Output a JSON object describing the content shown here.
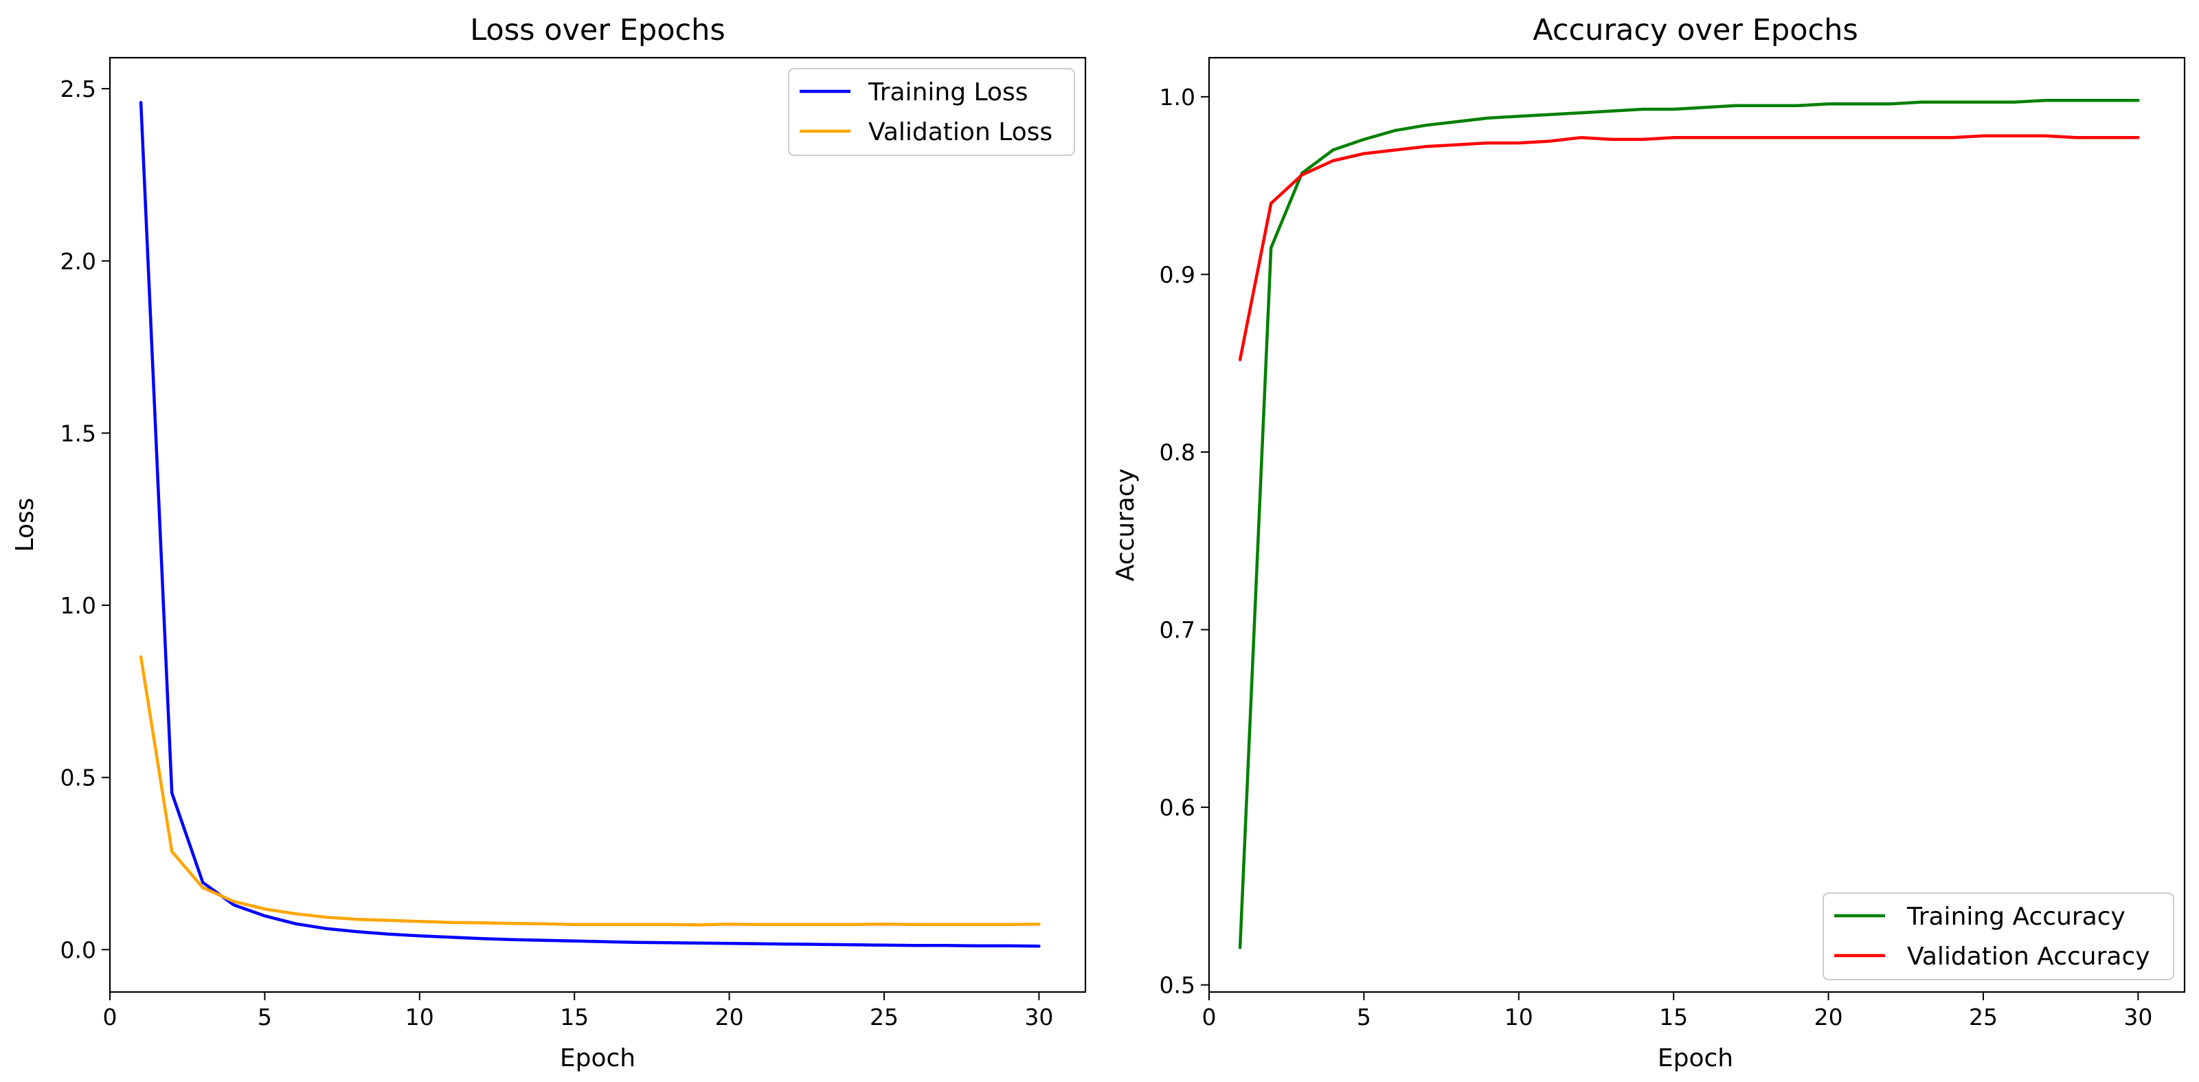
{
  "chart_data": [
    {
      "type": "line",
      "title": "Loss over Epochs",
      "xlabel": "Epoch",
      "ylabel": "Loss",
      "xlim": [
        0,
        31.5
      ],
      "ylim": [
        -0.123,
        2.59
      ],
      "xticks": [
        0,
        5,
        10,
        15,
        20,
        25,
        30
      ],
      "yticks": [
        0.0,
        0.5,
        1.0,
        1.5,
        2.0,
        2.5
      ],
      "ytick_labels": [
        "0.0",
        "0.5",
        "1.0",
        "1.5",
        "2.0",
        "2.5"
      ],
      "xtick_labels": [
        "0",
        "5",
        "10",
        "15",
        "20",
        "25",
        "30"
      ],
      "legend_position": "top-right",
      "grid": false,
      "x": [
        1,
        2,
        3,
        4,
        5,
        6,
        7,
        8,
        9,
        10,
        11,
        12,
        13,
        14,
        15,
        16,
        17,
        18,
        19,
        20,
        21,
        22,
        23,
        24,
        25,
        26,
        27,
        28,
        29,
        30
      ],
      "series": [
        {
          "name": "Training Loss",
          "color": "#0000ff",
          "values": [
            2.46,
            0.455,
            0.195,
            0.13,
            0.098,
            0.075,
            0.061,
            0.052,
            0.045,
            0.04,
            0.036,
            0.032,
            0.029,
            0.027,
            0.025,
            0.023,
            0.021,
            0.02,
            0.019,
            0.018,
            0.017,
            0.016,
            0.015,
            0.014,
            0.013,
            0.012,
            0.012,
            0.011,
            0.011,
            0.01
          ]
        },
        {
          "name": "Validation Loss",
          "color": "#ffa500",
          "values": [
            0.85,
            0.285,
            0.18,
            0.14,
            0.118,
            0.104,
            0.094,
            0.088,
            0.085,
            0.082,
            0.079,
            0.078,
            0.076,
            0.075,
            0.073,
            0.073,
            0.073,
            0.073,
            0.072,
            0.074,
            0.073,
            0.073,
            0.073,
            0.073,
            0.074,
            0.073,
            0.073,
            0.073,
            0.073,
            0.074
          ]
        }
      ]
    },
    {
      "type": "line",
      "title": "Accuracy over Epochs",
      "xlabel": "Epoch",
      "ylabel": "Accuracy",
      "xlim": [
        0,
        31.5
      ],
      "ylim": [
        0.496,
        1.022
      ],
      "xticks": [
        0,
        5,
        10,
        15,
        20,
        25,
        30
      ],
      "yticks": [
        0.5,
        0.6,
        0.7,
        0.8,
        0.9,
        1.0
      ],
      "ytick_labels": [
        "0.5",
        "0.6",
        "0.7",
        "0.8",
        "0.9",
        "1.0"
      ],
      "xtick_labels": [
        "0",
        "5",
        "10",
        "15",
        "20",
        "25",
        "30"
      ],
      "legend_position": "bottom-right",
      "grid": false,
      "x": [
        1,
        2,
        3,
        4,
        5,
        6,
        7,
        8,
        9,
        10,
        11,
        12,
        13,
        14,
        15,
        16,
        17,
        18,
        19,
        20,
        21,
        22,
        23,
        24,
        25,
        26,
        27,
        28,
        29,
        30
      ],
      "series": [
        {
          "name": "Training Accuracy",
          "color": "#008000",
          "values": [
            0.521,
            0.915,
            0.957,
            0.97,
            0.976,
            0.981,
            0.984,
            0.986,
            0.988,
            0.989,
            0.99,
            0.991,
            0.992,
            0.993,
            0.993,
            0.994,
            0.995,
            0.995,
            0.995,
            0.996,
            0.996,
            0.996,
            0.997,
            0.997,
            0.997,
            0.997,
            0.998,
            0.998,
            0.998,
            0.998
          ]
        },
        {
          "name": "Validation Accuracy",
          "color": "#ff0000",
          "values": [
            0.852,
            0.94,
            0.956,
            0.964,
            0.968,
            0.97,
            0.972,
            0.973,
            0.974,
            0.974,
            0.975,
            0.977,
            0.976,
            0.976,
            0.977,
            0.977,
            0.977,
            0.977,
            0.977,
            0.977,
            0.977,
            0.977,
            0.977,
            0.977,
            0.978,
            0.978,
            0.978,
            0.977,
            0.977,
            0.977
          ]
        }
      ]
    }
  ]
}
